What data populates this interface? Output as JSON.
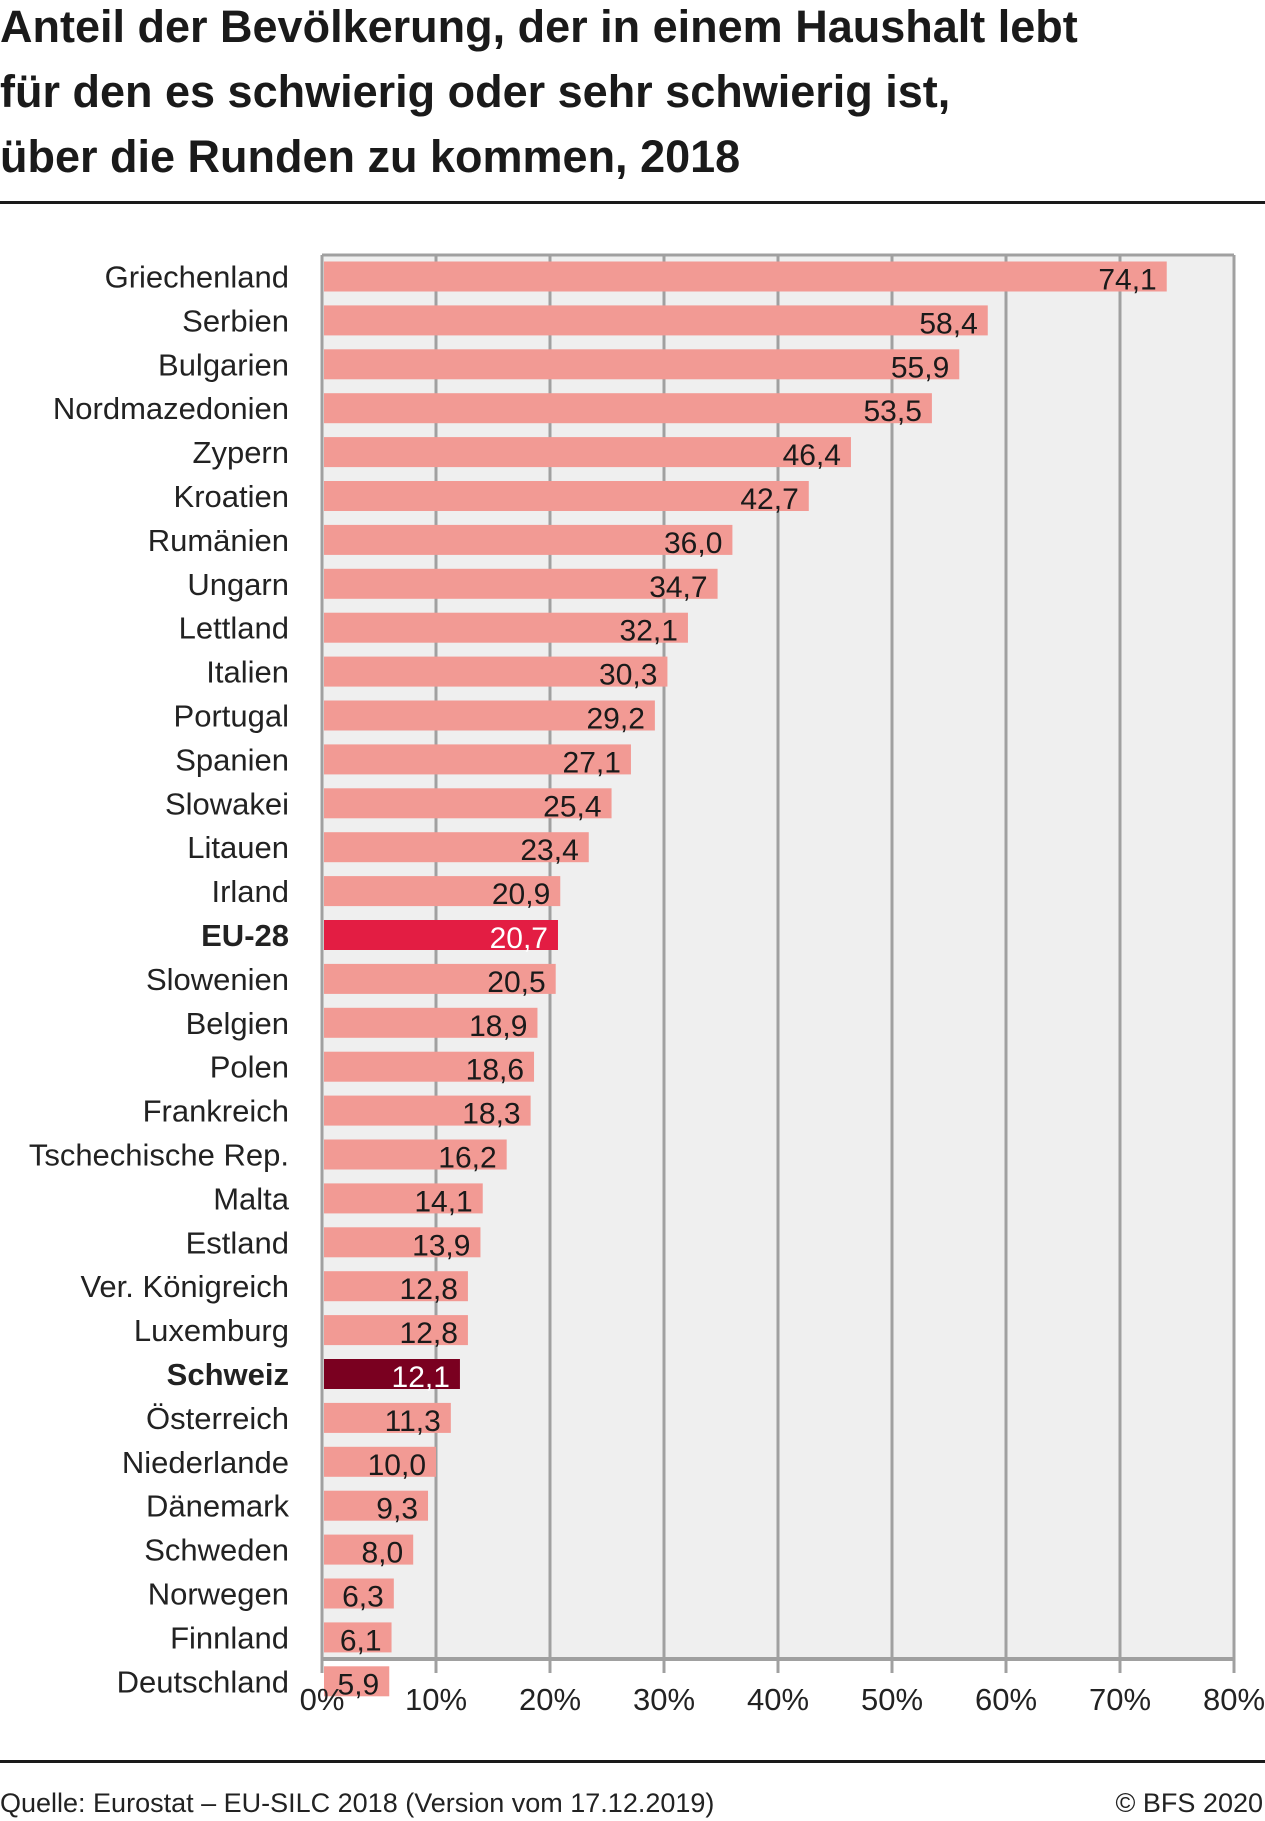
{
  "chart_data": {
    "type": "bar",
    "orientation": "horizontal",
    "title_lines": [
      "Anteil der Bevölkerung, der in einem Haushalt lebt",
      "für den es schwierig oder sehr schwierig ist,",
      "über die Runden zu kommen, 2018"
    ],
    "categories": [
      "Griechenland",
      "Serbien",
      "Bulgarien",
      "Nordmazedonien",
      "Zypern",
      "Kroatien",
      "Rumänien",
      "Ungarn",
      "Lettland",
      "Italien",
      "Portugal",
      "Spanien",
      "Slowakei",
      "Litauen",
      "Irland",
      "EU-28",
      "Slowenien",
      "Belgien",
      "Polen",
      "Frankreich",
      "Tschechische Rep.",
      "Malta",
      "Estland",
      "Ver. Königreich",
      "Luxemburg",
      "Schweiz",
      "Österreich",
      "Niederlande",
      "Dänemark",
      "Schweden",
      "Norwegen",
      "Finnland",
      "Deutschland"
    ],
    "values": [
      74.1,
      58.4,
      55.9,
      53.5,
      46.4,
      42.7,
      36.0,
      34.7,
      32.1,
      30.3,
      29.2,
      27.1,
      25.4,
      23.4,
      20.9,
      20.7,
      20.5,
      18.9,
      18.6,
      18.3,
      16.2,
      14.1,
      13.9,
      12.8,
      12.8,
      12.1,
      11.3,
      10.0,
      9.3,
      8.0,
      6.3,
      6.1,
      5.9
    ],
    "value_labels": [
      "74,1",
      "58,4",
      "55,9",
      "53,5",
      "46,4",
      "42,7",
      "36,0",
      "34,7",
      "32,1",
      "30,3",
      "29,2",
      "27,1",
      "25,4",
      "23,4",
      "20,9",
      "20,7",
      "20,5",
      "18,9",
      "18,6",
      "18,3",
      "16,2",
      "14,1",
      "13,9",
      "12,8",
      "12,8",
      "12,1",
      "11,3",
      "10,0",
      "9,3",
      "8,0",
      "6,3",
      "6,1",
      "5,9"
    ],
    "highlight": {
      "EU-28": "#e31d43",
      "Schweiz": "#7a0020"
    },
    "bar_color": "#f29a94",
    "xlim": [
      0,
      80
    ],
    "xticks": [
      0,
      10,
      20,
      30,
      40,
      50,
      60,
      70,
      80
    ],
    "xtick_labels": [
      "0%",
      "10%",
      "20%",
      "30%",
      "40%",
      "50%",
      "60%",
      "70%",
      "80%"
    ],
    "xlabel": "",
    "ylabel": "",
    "grid": true
  },
  "footer": {
    "source": "Quelle: Eurostat – EU-SILC 2018 (Version vom 17.12.2019)",
    "copyright": "© BFS 2020"
  }
}
